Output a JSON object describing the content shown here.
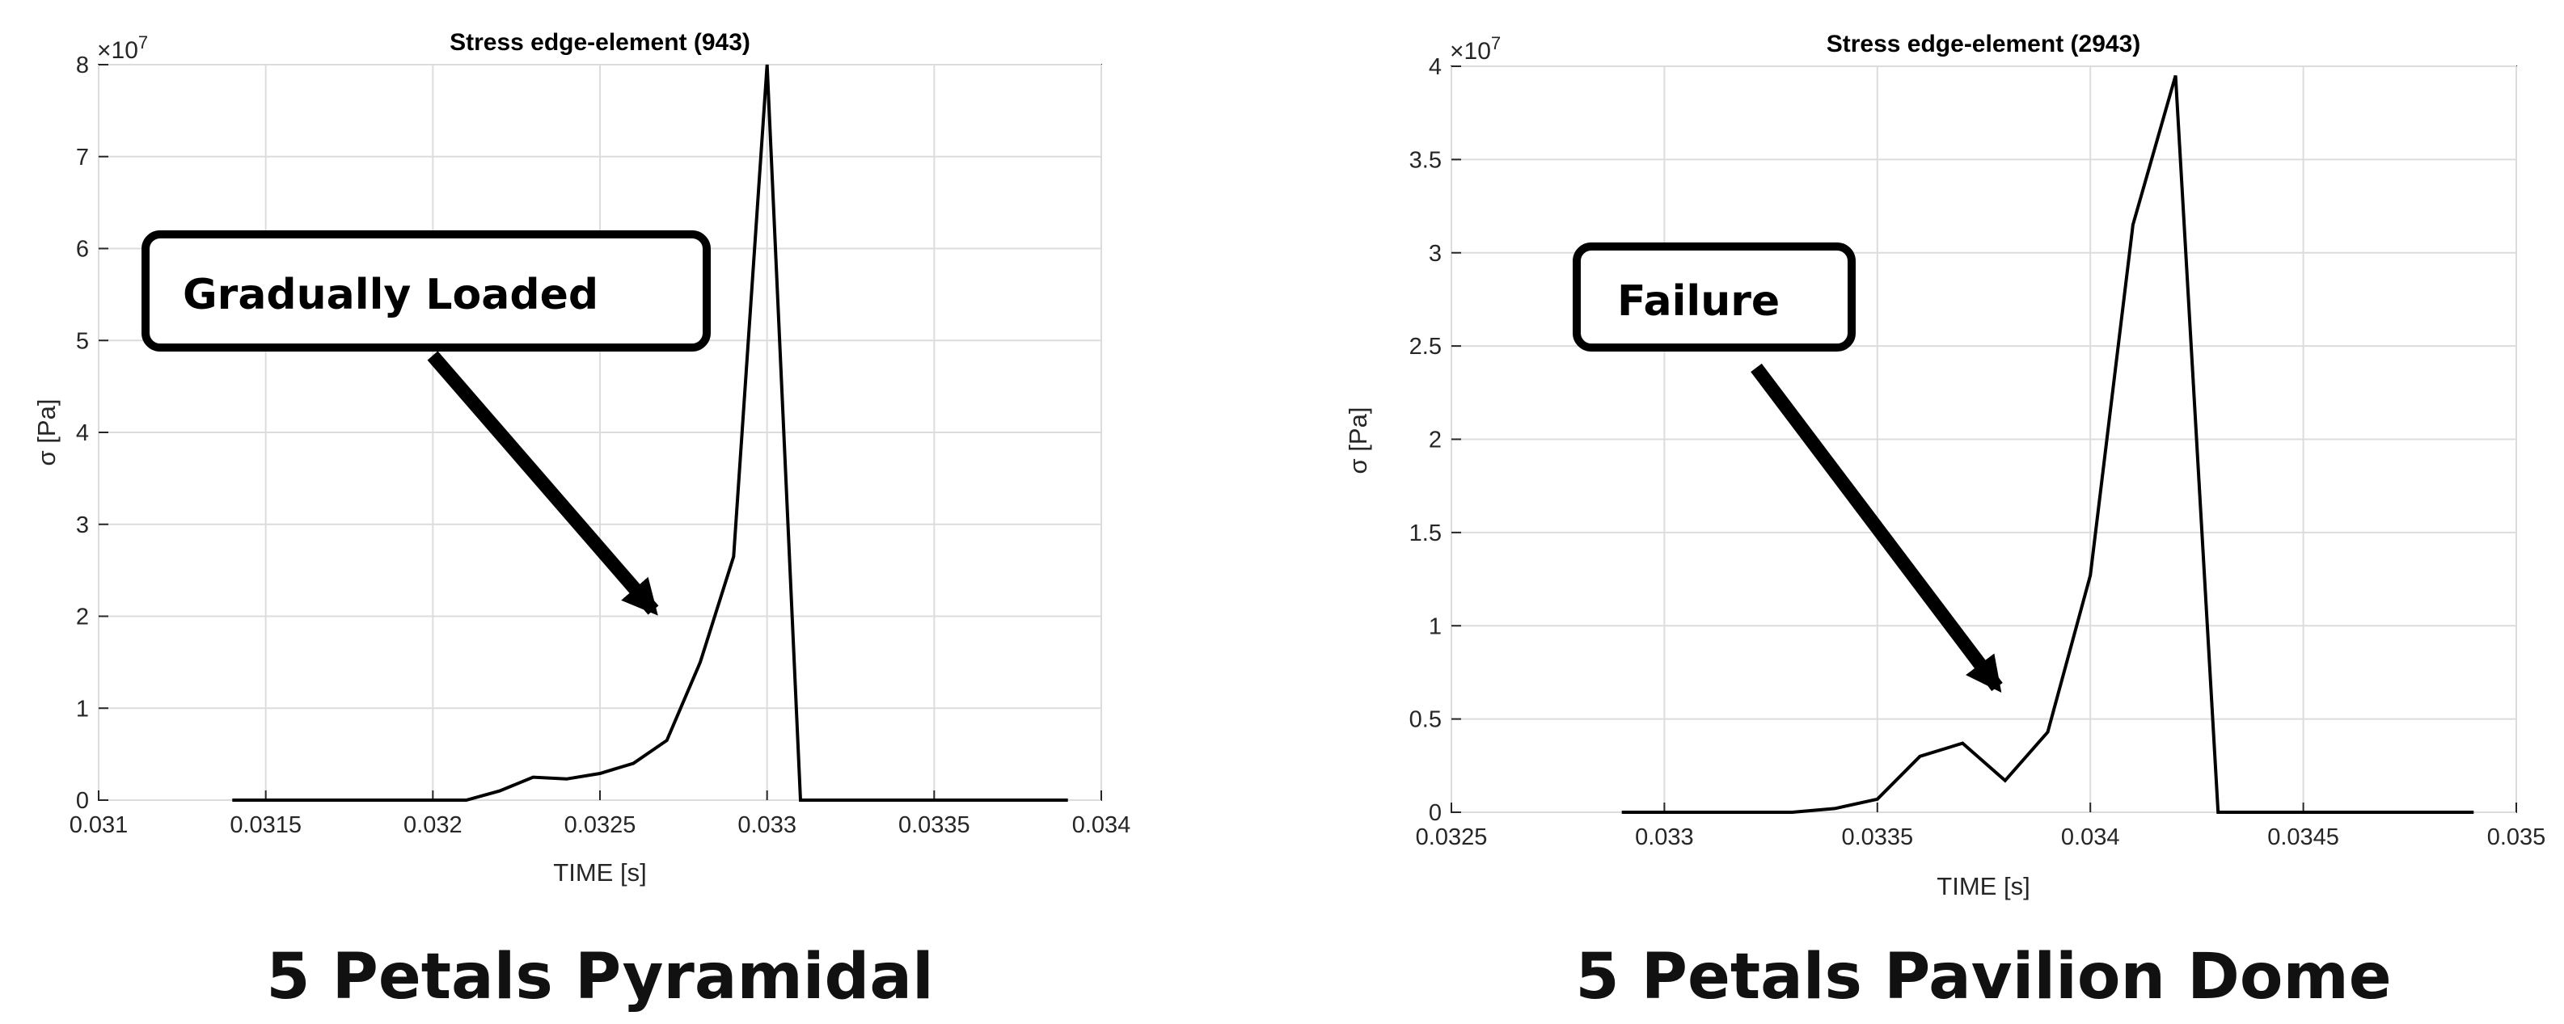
{
  "panels": [
    {
      "caption": "5 Petals Pyramidal",
      "callout": "Gradually Loaded",
      "exponent": "×10^7"
    },
    {
      "caption": "5 Petals Pavilion Dome",
      "callout": "Failure",
      "exponent": "×10^7"
    }
  ],
  "chart_data": [
    {
      "type": "line",
      "title": "Stress edge-element (943)",
      "xlabel": "TIME [s]",
      "ylabel": "σ [Pa]",
      "xlim": [
        0.031,
        0.034
      ],
      "ylim": [
        0,
        8
      ],
      "y_multiplier": "×10^7",
      "grid": true,
      "x_ticks": [
        "0.031",
        "0.0315",
        "0.032",
        "0.0325",
        "0.033",
        "0.0335",
        "0.034"
      ],
      "y_ticks": [
        "0",
        "1",
        "2",
        "3",
        "4",
        "5",
        "6",
        "7",
        "8"
      ],
      "line_color": "#000000",
      "series": [
        {
          "x": [
            0.0314,
            0.0321,
            0.0322,
            0.0323,
            0.0324,
            0.0325,
            0.0326,
            0.0327,
            0.0328,
            0.0329,
            0.033,
            0.0331,
            0.0339
          ],
          "y": [
            0,
            0,
            0.1,
            0.25,
            0.23,
            0.29,
            0.4,
            0.65,
            1.5,
            2.65,
            8.0,
            0,
            0
          ]
        }
      ]
    },
    {
      "type": "line",
      "title": "Stress edge-element (2943)",
      "xlabel": "TIME [s]",
      "ylabel": "σ [Pa]",
      "xlim": [
        0.0325,
        0.035
      ],
      "ylim": [
        0,
        4
      ],
      "y_multiplier": "×10^7",
      "grid": true,
      "x_ticks": [
        "0.0325",
        "0.033",
        "0.0335",
        "0.034",
        "0.0345",
        "0.035"
      ],
      "y_ticks": [
        "0",
        "0.5",
        "1",
        "1.5",
        "2",
        "2.5",
        "3",
        "3.5",
        "4"
      ],
      "line_color": "#000000",
      "series": [
        {
          "x": [
            0.0329,
            0.0333,
            0.0334,
            0.0335,
            0.0336,
            0.0337,
            0.0338,
            0.0339,
            0.034,
            0.0341,
            0.0342,
            0.0343,
            0.0349
          ],
          "y": [
            0,
            0,
            0.02,
            0.07,
            0.3,
            0.37,
            0.17,
            0.43,
            1.27,
            3.15,
            3.95,
            0,
            0
          ]
        }
      ]
    }
  ]
}
